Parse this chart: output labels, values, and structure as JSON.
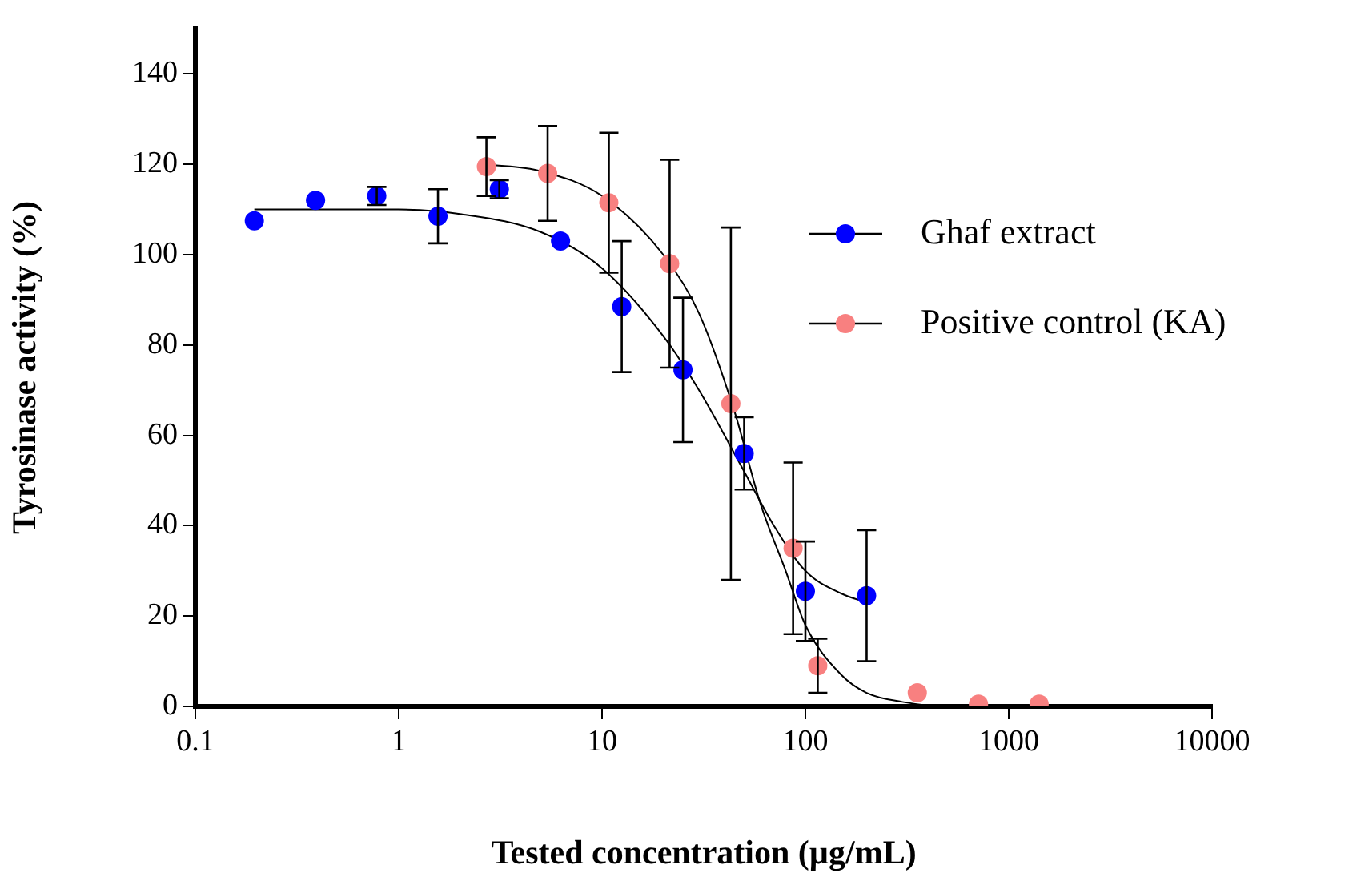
{
  "chart_data": {
    "type": "scatter",
    "xlabel": "Tested concentration (µg/mL)",
    "ylabel": "Tyrosinase activity (%)",
    "log": "x",
    "xlim": [
      0.1,
      10000
    ],
    "xticks": [
      0.1,
      1,
      10,
      100,
      1000,
      10000
    ],
    "ylim": [
      0,
      150
    ],
    "yticks": [
      0,
      20,
      40,
      60,
      80,
      100,
      120,
      140
    ],
    "grid": false,
    "legend": "right",
    "marker": "circle",
    "series": [
      {
        "name": "Ghaf extract",
        "color": "#0000ff",
        "x": [
          0.195,
          0.39,
          0.78,
          1.56,
          3.125,
          6.25,
          12.5,
          25,
          50,
          100,
          200
        ],
        "values": [
          107.5,
          112,
          113,
          108.5,
          114.5,
          103,
          88.5,
          74.5,
          56,
          25.5,
          24.5
        ],
        "errors": [
          null,
          null,
          2,
          6,
          2,
          null,
          14.5,
          16,
          8,
          11,
          14.5
        ]
      },
      {
        "name": "Positive control (KA)",
        "color": "#f88080",
        "x": [
          2.7,
          5.4,
          10.8,
          21.5,
          43,
          87,
          115,
          355,
          710,
          1410
        ],
        "values": [
          119.5,
          118,
          111.5,
          98,
          67,
          35,
          9,
          3,
          0.5,
          0.5
        ],
        "errors": [
          6.5,
          10.5,
          15.5,
          23,
          39,
          19,
          6,
          null,
          null,
          null
        ]
      },
      {
        "type": "line",
        "marker": "none",
        "color": "#000000",
        "x": [
          0.195,
          1,
          2,
          5,
          10,
          20,
          30,
          50,
          70,
          100,
          150,
          200
        ],
        "values": [
          110,
          110,
          109,
          105,
          97,
          82,
          70,
          52,
          40,
          30,
          25,
          23
        ]
      },
      {
        "type": "line",
        "marker": "none",
        "color": "#000000",
        "x": [
          2.7,
          5,
          10,
          20,
          30,
          45,
          60,
          80,
          100,
          150,
          200,
          300,
          500,
          1410
        ],
        "values": [
          120,
          118.5,
          113,
          100,
          87,
          65,
          45,
          30,
          18,
          7,
          3,
          1,
          0,
          0
        ]
      }
    ]
  }
}
